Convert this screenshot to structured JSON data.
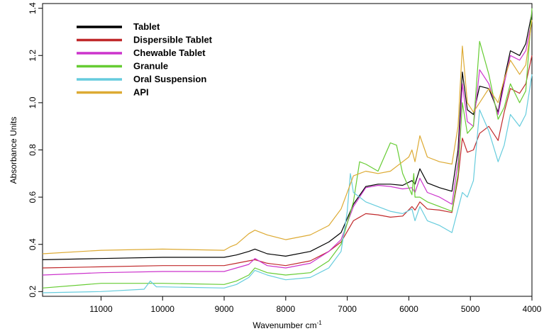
{
  "chart_data": {
    "type": "line",
    "title": "",
    "xlabel": "Wavenumber cm",
    "xlabel_superscript": "-1",
    "ylabel": "Absorbance Units",
    "xlim": [
      11950,
      4000
    ],
    "x_reversed": true,
    "ylim": [
      0.18,
      1.42
    ],
    "xticks": [
      11000,
      10000,
      9000,
      8000,
      7000,
      6000,
      5000,
      4000
    ],
    "yticks": [
      0.2,
      0.4,
      0.6,
      0.8,
      1.0,
      1.2,
      1.4
    ],
    "ytick_labels": [
      "0.2",
      "0.4",
      "0.6",
      "0.8",
      "1.0",
      "1.2",
      "1.4"
    ],
    "grid": false,
    "legend_position": "top-left",
    "series": [
      {
        "name": "Tablet",
        "color": "#000000",
        "points": [
          [
            11950,
            0.335
          ],
          [
            11000,
            0.34
          ],
          [
            10000,
            0.345
          ],
          [
            9000,
            0.345
          ],
          [
            8800,
            0.355
          ],
          [
            8600,
            0.37
          ],
          [
            8500,
            0.38
          ],
          [
            8300,
            0.36
          ],
          [
            8000,
            0.35
          ],
          [
            7600,
            0.37
          ],
          [
            7300,
            0.41
          ],
          [
            7100,
            0.45
          ],
          [
            6900,
            0.57
          ],
          [
            6700,
            0.645
          ],
          [
            6500,
            0.655
          ],
          [
            6300,
            0.655
          ],
          [
            6100,
            0.65
          ],
          [
            5950,
            0.67
          ],
          [
            5900,
            0.655
          ],
          [
            5820,
            0.72
          ],
          [
            5700,
            0.66
          ],
          [
            5500,
            0.64
          ],
          [
            5300,
            0.625
          ],
          [
            5200,
            0.8
          ],
          [
            5130,
            1.13
          ],
          [
            5050,
            0.97
          ],
          [
            4950,
            0.95
          ],
          [
            4850,
            1.07
          ],
          [
            4700,
            1.06
          ],
          [
            4550,
            0.96
          ],
          [
            4450,
            1.1
          ],
          [
            4350,
            1.22
          ],
          [
            4200,
            1.2
          ],
          [
            4100,
            1.25
          ],
          [
            4000,
            1.38
          ]
        ]
      },
      {
        "name": "Dispersible Tablet",
        "color": "#c0292b",
        "points": [
          [
            11950,
            0.3
          ],
          [
            11000,
            0.305
          ],
          [
            10000,
            0.31
          ],
          [
            9000,
            0.31
          ],
          [
            8800,
            0.32
          ],
          [
            8600,
            0.33
          ],
          [
            8500,
            0.335
          ],
          [
            8300,
            0.32
          ],
          [
            8000,
            0.31
          ],
          [
            7600,
            0.33
          ],
          [
            7300,
            0.37
          ],
          [
            7100,
            0.41
          ],
          [
            6900,
            0.5
          ],
          [
            6700,
            0.53
          ],
          [
            6500,
            0.525
          ],
          [
            6300,
            0.515
          ],
          [
            6100,
            0.52
          ],
          [
            5950,
            0.56
          ],
          [
            5900,
            0.545
          ],
          [
            5820,
            0.58
          ],
          [
            5700,
            0.55
          ],
          [
            5500,
            0.545
          ],
          [
            5300,
            0.535
          ],
          [
            5200,
            0.68
          ],
          [
            5130,
            0.85
          ],
          [
            5050,
            0.79
          ],
          [
            4950,
            0.8
          ],
          [
            4850,
            0.87
          ],
          [
            4700,
            0.9
          ],
          [
            4550,
            0.84
          ],
          [
            4450,
            0.96
          ],
          [
            4350,
            1.06
          ],
          [
            4200,
            1.04
          ],
          [
            4100,
            1.08
          ],
          [
            4000,
            1.2
          ]
        ]
      },
      {
        "name": "Chewable Tablet",
        "color": "#cc33cc",
        "points": [
          [
            11950,
            0.27
          ],
          [
            11000,
            0.28
          ],
          [
            10000,
            0.285
          ],
          [
            9000,
            0.285
          ],
          [
            8800,
            0.3
          ],
          [
            8600,
            0.315
          ],
          [
            8500,
            0.34
          ],
          [
            8300,
            0.31
          ],
          [
            8000,
            0.3
          ],
          [
            7600,
            0.32
          ],
          [
            7300,
            0.37
          ],
          [
            7100,
            0.42
          ],
          [
            6900,
            0.56
          ],
          [
            6700,
            0.64
          ],
          [
            6500,
            0.65
          ],
          [
            6300,
            0.645
          ],
          [
            6100,
            0.635
          ],
          [
            5950,
            0.64
          ],
          [
            5900,
            0.62
          ],
          [
            5820,
            0.68
          ],
          [
            5700,
            0.62
          ],
          [
            5500,
            0.6
          ],
          [
            5300,
            0.57
          ],
          [
            5200,
            0.75
          ],
          [
            5130,
            1.08
          ],
          [
            5050,
            0.92
          ],
          [
            4950,
            0.9
          ],
          [
            4850,
            1.14
          ],
          [
            4700,
            1.08
          ],
          [
            4550,
            0.95
          ],
          [
            4450,
            1.08
          ],
          [
            4350,
            1.2
          ],
          [
            4200,
            1.18
          ],
          [
            4100,
            1.22
          ],
          [
            4000,
            1.35
          ]
        ]
      },
      {
        "name": "Granule",
        "color": "#66cc33",
        "points": [
          [
            11950,
            0.215
          ],
          [
            11000,
            0.235
          ],
          [
            10000,
            0.235
          ],
          [
            9000,
            0.23
          ],
          [
            8800,
            0.245
          ],
          [
            8600,
            0.27
          ],
          [
            8500,
            0.3
          ],
          [
            8300,
            0.28
          ],
          [
            8000,
            0.27
          ],
          [
            7600,
            0.28
          ],
          [
            7300,
            0.33
          ],
          [
            7100,
            0.4
          ],
          [
            6900,
            0.58
          ],
          [
            6800,
            0.75
          ],
          [
            6700,
            0.74
          ],
          [
            6500,
            0.71
          ],
          [
            6300,
            0.83
          ],
          [
            6200,
            0.82
          ],
          [
            6100,
            0.7
          ],
          [
            5950,
            0.61
          ],
          [
            5920,
            0.7
          ],
          [
            5900,
            0.6
          ],
          [
            5820,
            0.6
          ],
          [
            5700,
            0.58
          ],
          [
            5500,
            0.56
          ],
          [
            5300,
            0.54
          ],
          [
            5200,
            0.7
          ],
          [
            5130,
            1.0
          ],
          [
            5050,
            0.87
          ],
          [
            4950,
            0.9
          ],
          [
            4850,
            1.26
          ],
          [
            4700,
            1.12
          ],
          [
            4550,
            0.93
          ],
          [
            4450,
            0.98
          ],
          [
            4350,
            1.08
          ],
          [
            4200,
            1.0
          ],
          [
            4100,
            1.05
          ],
          [
            4000,
            1.4
          ]
        ]
      },
      {
        "name": "Oral Suspension",
        "color": "#66ccdd",
        "points": [
          [
            11950,
            0.195
          ],
          [
            11000,
            0.2
          ],
          [
            10300,
            0.21
          ],
          [
            10200,
            0.245
          ],
          [
            10100,
            0.22
          ],
          [
            10000,
            0.22
          ],
          [
            9000,
            0.215
          ],
          [
            8800,
            0.23
          ],
          [
            8600,
            0.26
          ],
          [
            8500,
            0.29
          ],
          [
            8300,
            0.27
          ],
          [
            8000,
            0.25
          ],
          [
            7600,
            0.26
          ],
          [
            7300,
            0.3
          ],
          [
            7100,
            0.37
          ],
          [
            7000,
            0.54
          ],
          [
            6950,
            0.7
          ],
          [
            6900,
            0.62
          ],
          [
            6800,
            0.6
          ],
          [
            6700,
            0.58
          ],
          [
            6500,
            0.56
          ],
          [
            6300,
            0.54
          ],
          [
            6100,
            0.53
          ],
          [
            5950,
            0.55
          ],
          [
            5900,
            0.5
          ],
          [
            5820,
            0.56
          ],
          [
            5700,
            0.5
          ],
          [
            5500,
            0.48
          ],
          [
            5300,
            0.45
          ],
          [
            5200,
            0.55
          ],
          [
            5130,
            0.62
          ],
          [
            5050,
            0.6
          ],
          [
            4950,
            0.67
          ],
          [
            4850,
            0.97
          ],
          [
            4700,
            0.88
          ],
          [
            4550,
            0.75
          ],
          [
            4450,
            0.82
          ],
          [
            4350,
            0.95
          ],
          [
            4200,
            0.9
          ],
          [
            4100,
            0.95
          ],
          [
            4000,
            1.12
          ]
        ]
      },
      {
        "name": "API",
        "color": "#ddaa33",
        "points": [
          [
            11950,
            0.36
          ],
          [
            11000,
            0.375
          ],
          [
            10000,
            0.38
          ],
          [
            9000,
            0.375
          ],
          [
            8900,
            0.39
          ],
          [
            8800,
            0.4
          ],
          [
            8600,
            0.445
          ],
          [
            8500,
            0.46
          ],
          [
            8300,
            0.44
          ],
          [
            8000,
            0.42
          ],
          [
            7600,
            0.44
          ],
          [
            7300,
            0.48
          ],
          [
            7100,
            0.55
          ],
          [
            6900,
            0.69
          ],
          [
            6700,
            0.71
          ],
          [
            6500,
            0.7
          ],
          [
            6300,
            0.71
          ],
          [
            6100,
            0.75
          ],
          [
            6000,
            0.77
          ],
          [
            5950,
            0.8
          ],
          [
            5900,
            0.75
          ],
          [
            5820,
            0.86
          ],
          [
            5700,
            0.77
          ],
          [
            5500,
            0.75
          ],
          [
            5300,
            0.74
          ],
          [
            5200,
            0.9
          ],
          [
            5130,
            1.24
          ],
          [
            5050,
            1.0
          ],
          [
            4950,
            0.96
          ],
          [
            4850,
            1.0
          ],
          [
            4700,
            1.06
          ],
          [
            4550,
            1.0
          ],
          [
            4450,
            1.1
          ],
          [
            4350,
            1.18
          ],
          [
            4200,
            1.12
          ],
          [
            4100,
            1.16
          ],
          [
            4000,
            1.35
          ]
        ]
      }
    ]
  }
}
